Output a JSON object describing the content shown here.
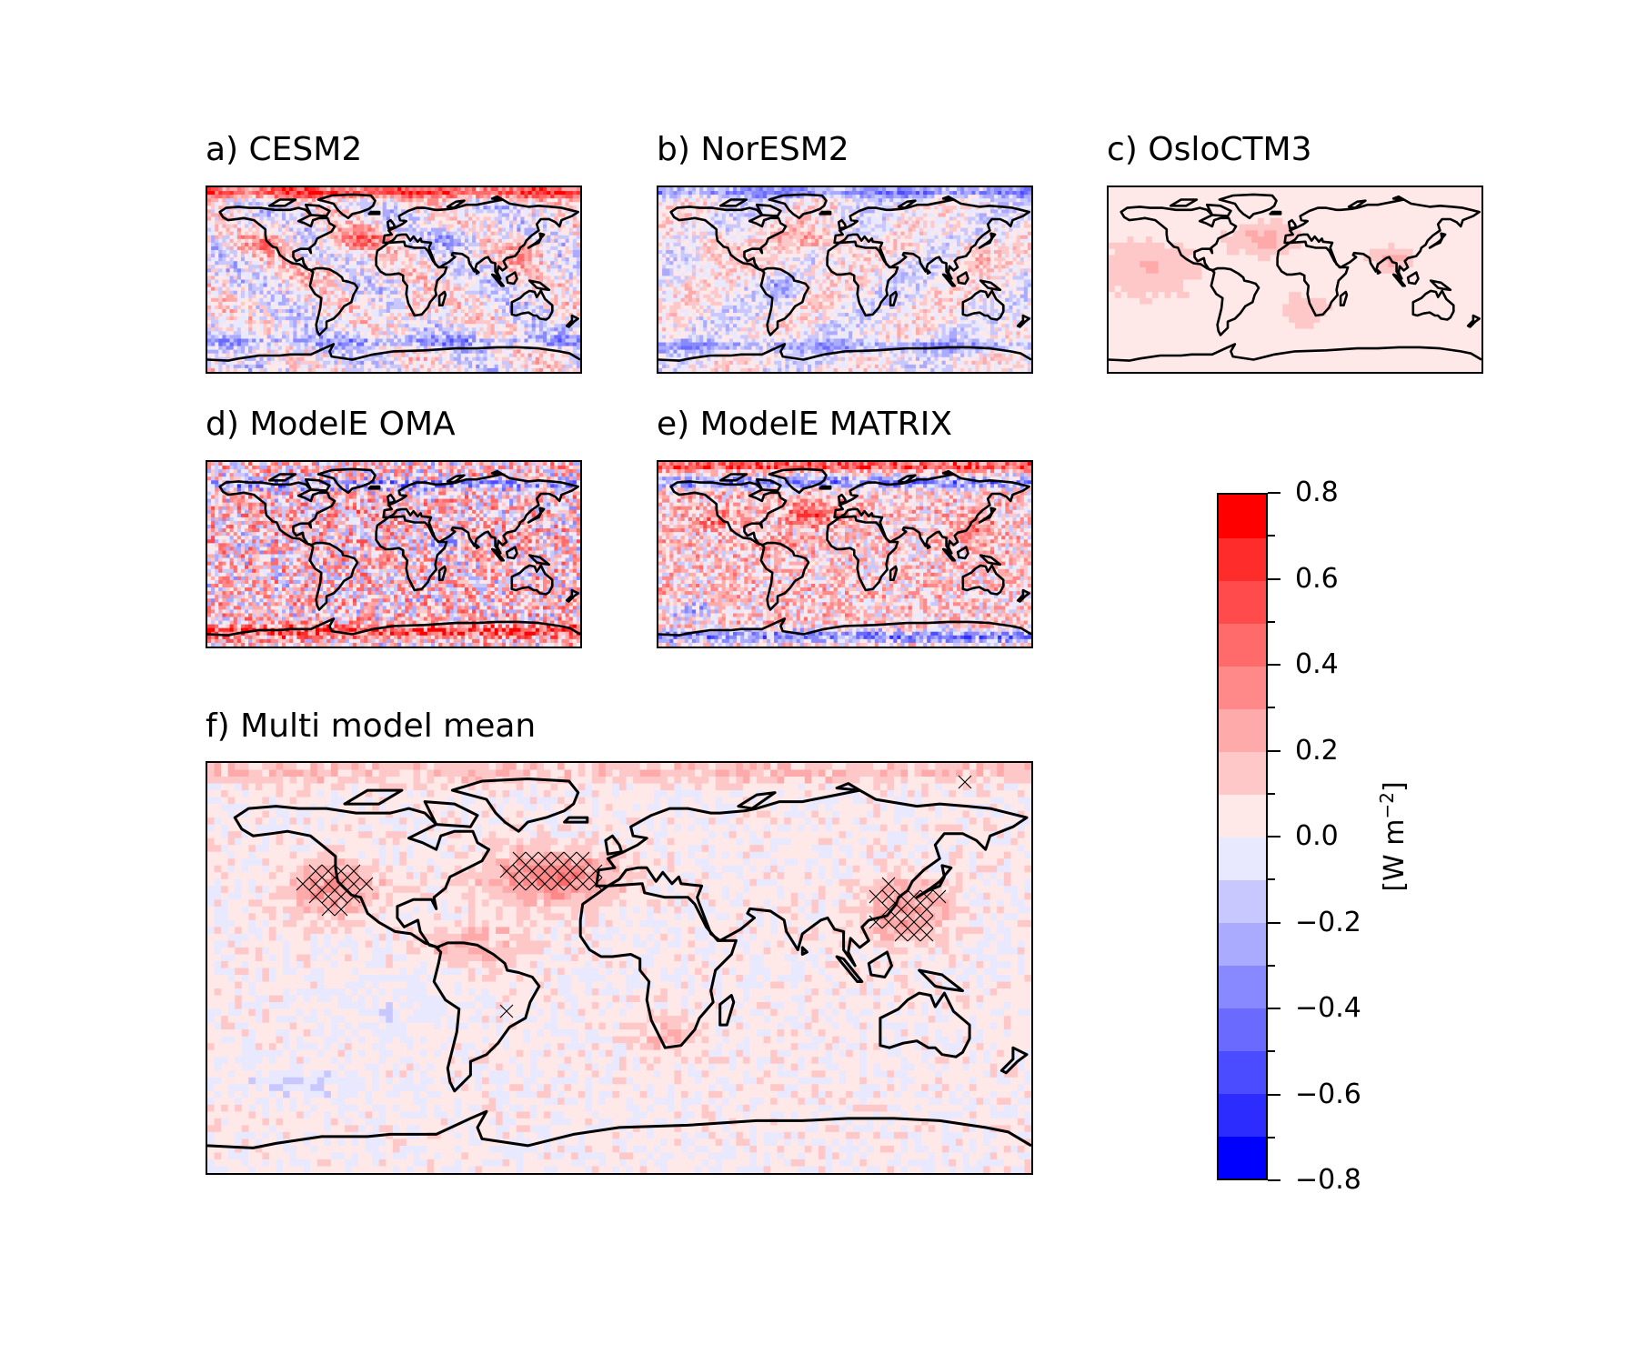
{
  "panels": [
    {
      "id": "a",
      "title": "a) CESM2",
      "pattern": "cesm2"
    },
    {
      "id": "b",
      "title": "b) NorESM2",
      "pattern": "noresm2"
    },
    {
      "id": "c",
      "title": "c) OsloCTM3",
      "pattern": "osloctm3"
    },
    {
      "id": "d",
      "title": "d) ModelE OMA",
      "pattern": "oma"
    },
    {
      "id": "e",
      "title": "e) ModelE MATRIX",
      "pattern": "matrix"
    },
    {
      "id": "f",
      "title": "f) Multi model mean",
      "pattern": "mean",
      "hatched": true
    }
  ],
  "colorbar": {
    "label_main": "[W m",
    "label_exp": "−2",
    "label_end": "]",
    "min": -0.8,
    "max": 0.8,
    "levels": 16,
    "tick_labels": [
      "0.8",
      "0.6",
      "0.4",
      "0.2",
      "0.0",
      "−0.2",
      "−0.4",
      "−0.6",
      "−0.8"
    ],
    "colors": [
      "#0000ff",
      "#2c2cff",
      "#4b4bff",
      "#6a6aff",
      "#8989ff",
      "#aaaaff",
      "#c8c8ff",
      "#e8e8ff",
      "#ffe8e8",
      "#ffc8c8",
      "#ffaaaa",
      "#ff8989",
      "#ff6a6a",
      "#ff4b4b",
      "#ff2c2c",
      "#ff0000"
    ]
  },
  "map_colors": {
    "coastline": "#000000",
    "hatch": "#000000"
  }
}
